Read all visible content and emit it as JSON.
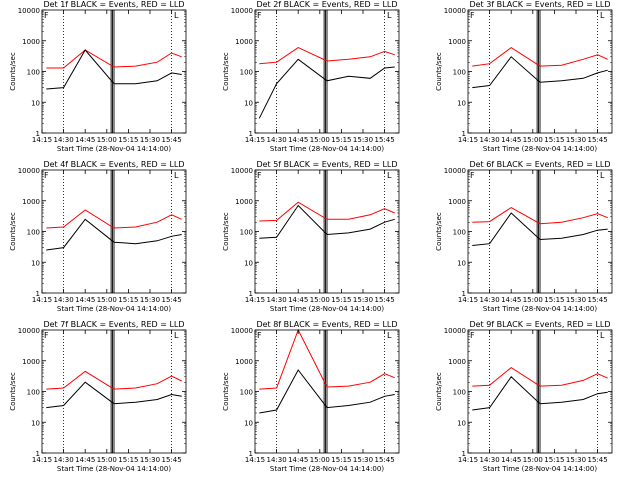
{
  "figure": {
    "x_title": "Start Time (28-Nov-04 14:14:00)",
    "y_title": "Counts/sec",
    "time_ticks": [
      "14:15",
      "14:30",
      "14:45",
      "15:00",
      "15:15",
      "15:30",
      "15:45"
    ],
    "y_ticks": [
      "1",
      "10",
      "100",
      "1000",
      "10000"
    ],
    "corner_marks": [
      "F",
      "L"
    ]
  },
  "colors": {
    "events": "#000000",
    "lld": "#ff0000",
    "axes": "#000000"
  },
  "chart_data": [
    {
      "type": "line",
      "title": "Det 1f BLACK = Events, RED = LLD",
      "xlabel": "Start Time (28-Nov-04 14:14:00)",
      "ylabel": "Counts/sec",
      "x_range": [
        "14:15",
        "15:55"
      ],
      "ylim": [
        1,
        10000
      ],
      "y_scale": "log",
      "x": [
        "14:18",
        "14:30",
        "14:45",
        "15:05",
        "15:20",
        "15:35",
        "15:45",
        "15:52"
      ],
      "series": [
        {
          "name": "LLD",
          "values": [
            130,
            130,
            500,
            140,
            150,
            200,
            400,
            300
          ]
        },
        {
          "name": "Events",
          "values": [
            27,
            30,
            500,
            40,
            40,
            50,
            90,
            80
          ]
        }
      ],
      "markers": [
        "F",
        "L"
      ]
    },
    {
      "type": "line",
      "title": "Det 2f BLACK = Events, RED = LLD",
      "xlabel": "Start Time (28-Nov-04 14:14:00)",
      "ylabel": "Counts/sec",
      "x_range": [
        "14:15",
        "15:55"
      ],
      "ylim": [
        1,
        10000
      ],
      "y_scale": "log",
      "x": [
        "14:18",
        "14:30",
        "14:45",
        "15:05",
        "15:20",
        "15:35",
        "15:45",
        "15:52"
      ],
      "series": [
        {
          "name": "LLD",
          "values": [
            180,
            200,
            600,
            220,
            250,
            300,
            450,
            350
          ]
        },
        {
          "name": "Events",
          "values": [
            3,
            40,
            250,
            50,
            70,
            60,
            130,
            140
          ]
        }
      ],
      "markers": [
        "F",
        "L"
      ]
    },
    {
      "type": "line",
      "title": "Det 3f BLACK = Events, RED = LLD",
      "xlabel": "Start Time (28-Nov-04 14:14:00)",
      "ylabel": "Counts/sec",
      "x_range": [
        "14:15",
        "15:55"
      ],
      "ylim": [
        1,
        10000
      ],
      "y_scale": "log",
      "x": [
        "14:18",
        "14:30",
        "14:45",
        "15:05",
        "15:20",
        "15:35",
        "15:45",
        "15:52"
      ],
      "series": [
        {
          "name": "LLD",
          "values": [
            150,
            180,
            600,
            150,
            160,
            250,
            350,
            250
          ]
        },
        {
          "name": "Events",
          "values": [
            30,
            35,
            300,
            45,
            50,
            60,
            90,
            110
          ]
        }
      ],
      "markers": [
        "F",
        "L"
      ]
    },
    {
      "type": "line",
      "title": "Det 4f BLACK = Events, RED = LLD",
      "xlabel": "Start Time (28-Nov-04 14:14:00)",
      "ylabel": "Counts/sec",
      "x_range": [
        "14:15",
        "15:55"
      ],
      "ylim": [
        1,
        10000
      ],
      "y_scale": "log",
      "x": [
        "14:18",
        "14:30",
        "14:45",
        "15:05",
        "15:20",
        "15:35",
        "15:45",
        "15:52"
      ],
      "series": [
        {
          "name": "LLD",
          "values": [
            130,
            140,
            500,
            130,
            140,
            200,
            350,
            250
          ]
        },
        {
          "name": "Events",
          "values": [
            25,
            30,
            250,
            45,
            40,
            50,
            70,
            80
          ]
        }
      ],
      "markers": [
        "F",
        "L"
      ]
    },
    {
      "type": "line",
      "title": "Det 5f BLACK = Events, RED = LLD",
      "xlabel": "Start Time (28-Nov-04 14:14:00)",
      "ylabel": "Counts/sec",
      "x_range": [
        "14:15",
        "15:55"
      ],
      "ylim": [
        1,
        10000
      ],
      "y_scale": "log",
      "x": [
        "14:18",
        "14:30",
        "14:45",
        "15:05",
        "15:20",
        "15:35",
        "15:45",
        "15:52"
      ],
      "series": [
        {
          "name": "LLD",
          "values": [
            220,
            230,
            900,
            250,
            250,
            350,
            550,
            400
          ]
        },
        {
          "name": "Events",
          "values": [
            60,
            65,
            700,
            80,
            90,
            120,
            200,
            250
          ]
        }
      ],
      "markers": [
        "F",
        "L"
      ]
    },
    {
      "type": "line",
      "title": "Det 6f BLACK = Events, RED = LLD",
      "xlabel": "Start Time (28-Nov-04 14:14:00)",
      "ylabel": "Counts/sec",
      "x_range": [
        "14:15",
        "15:55"
      ],
      "ylim": [
        1,
        10000
      ],
      "y_scale": "log",
      "x": [
        "14:18",
        "14:30",
        "14:45",
        "15:05",
        "15:20",
        "15:35",
        "15:45",
        "15:52"
      ],
      "series": [
        {
          "name": "LLD",
          "values": [
            200,
            210,
            600,
            180,
            200,
            280,
            380,
            280
          ]
        },
        {
          "name": "Events",
          "values": [
            35,
            40,
            400,
            55,
            60,
            80,
            110,
            120
          ]
        }
      ],
      "markers": [
        "F",
        "L"
      ]
    },
    {
      "type": "line",
      "title": "Det 7f BLACK = Events, RED = LLD",
      "xlabel": "Start Time (28-Nov-04 14:14:00)",
      "ylabel": "Counts/sec",
      "x_range": [
        "14:15",
        "15:55"
      ],
      "ylim": [
        1,
        10000
      ],
      "y_scale": "log",
      "x": [
        "14:18",
        "14:30",
        "14:45",
        "15:05",
        "15:20",
        "15:35",
        "15:45",
        "15:52"
      ],
      "series": [
        {
          "name": "LLD",
          "values": [
            120,
            130,
            450,
            120,
            130,
            180,
            320,
            220
          ]
        },
        {
          "name": "Events",
          "values": [
            30,
            35,
            200,
            40,
            45,
            55,
            80,
            70
          ]
        }
      ],
      "markers": [
        "F",
        "L"
      ]
    },
    {
      "type": "line",
      "title": "Det 8f BLACK = Events, RED = LLD",
      "xlabel": "Start Time (28-Nov-04 14:14:00)",
      "ylabel": "Counts/sec",
      "x_range": [
        "14:15",
        "15:55"
      ],
      "ylim": [
        1,
        10000
      ],
      "y_scale": "log",
      "x": [
        "14:18",
        "14:30",
        "14:45",
        "15:05",
        "15:20",
        "15:35",
        "15:45",
        "15:52"
      ],
      "series": [
        {
          "name": "LLD",
          "values": [
            120,
            130,
            10000,
            140,
            150,
            200,
            380,
            280
          ]
        },
        {
          "name": "Events",
          "values": [
            20,
            25,
            500,
            30,
            35,
            45,
            70,
            80
          ]
        }
      ],
      "markers": [
        "F",
        "L"
      ]
    },
    {
      "type": "line",
      "title": "Det 9f BLACK = Events, RED = LLD",
      "xlabel": "Start Time (28-Nov-04 14:14:00)",
      "ylabel": "Counts/sec",
      "x_range": [
        "14:15",
        "15:55"
      ],
      "ylim": [
        1,
        10000
      ],
      "y_scale": "log",
      "x": [
        "14:18",
        "14:30",
        "14:45",
        "15:05",
        "15:20",
        "15:35",
        "15:45",
        "15:52"
      ],
      "series": [
        {
          "name": "LLD",
          "values": [
            150,
            160,
            600,
            150,
            160,
            230,
            380,
            270
          ]
        },
        {
          "name": "Events",
          "values": [
            25,
            30,
            300,
            40,
            45,
            55,
            85,
            95
          ]
        }
      ],
      "markers": [
        "F",
        "L"
      ]
    }
  ]
}
